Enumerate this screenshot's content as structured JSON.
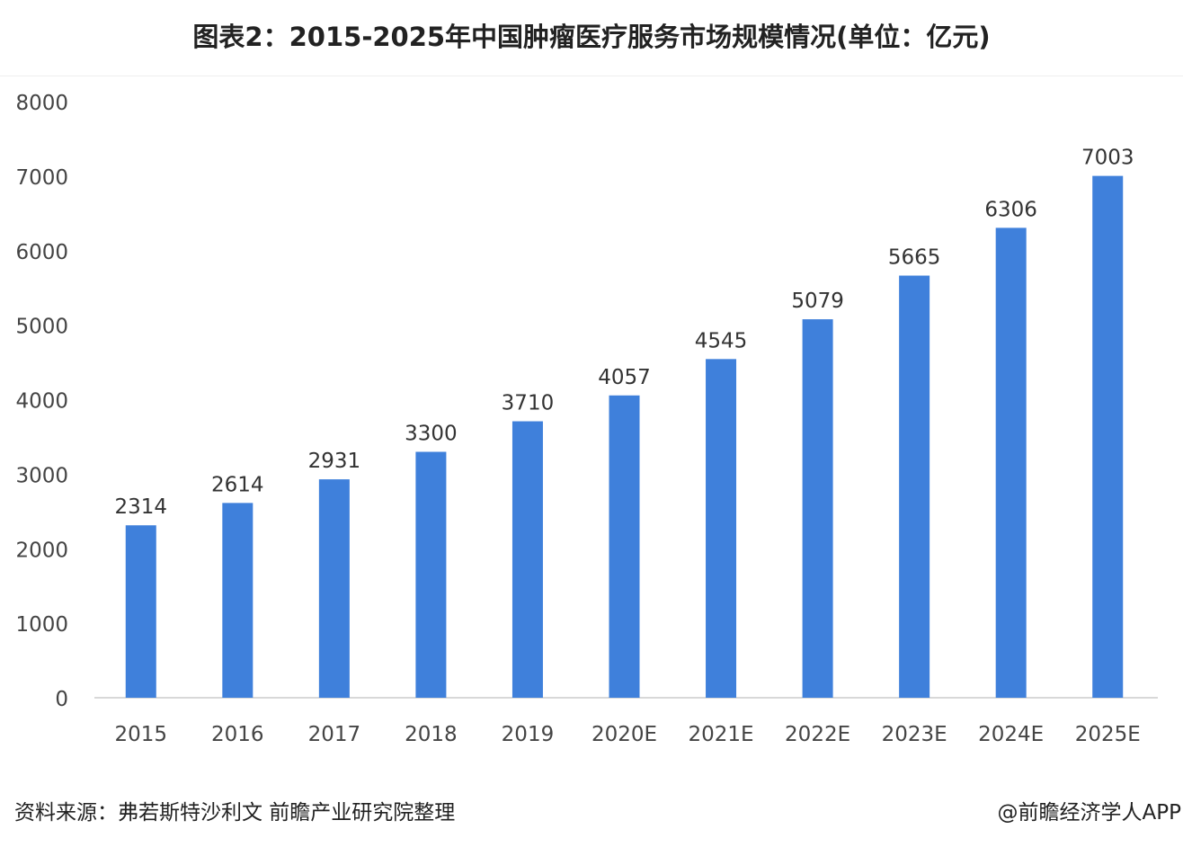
{
  "chart_data": {
    "type": "bar",
    "title": "图表2：2015-2025年中国肿瘤医疗服务市场规模情况(单位：亿元)",
    "categories": [
      "2015",
      "2016",
      "2017",
      "2018",
      "2019",
      "2020E",
      "2021E",
      "2022E",
      "2023E",
      "2024E",
      "2025E"
    ],
    "values": [
      2314,
      2614,
      2931,
      3300,
      3710,
      4057,
      4545,
      5079,
      5665,
      6306,
      7003
    ],
    "ylim": [
      0,
      8000
    ],
    "yticks": [
      0,
      1000,
      2000,
      3000,
      4000,
      5000,
      6000,
      7000,
      8000
    ],
    "xlabel": "",
    "ylabel": "",
    "grid": false,
    "bar_color": "#3f80db"
  },
  "footer": {
    "source": "资料来源：弗若斯特沙利文 前瞻产业研究院整理",
    "credit": "@前瞻经济学人APP"
  }
}
